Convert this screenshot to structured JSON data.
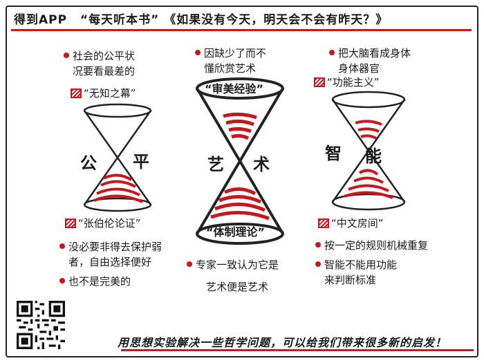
{
  "header": {
    "brand": "得到APP",
    "series": "“每天听本书”",
    "book": "《如果没有今天，明天会不会有昨天？》"
  },
  "panels": {
    "fairness": {
      "title_left": "公",
      "title_right": "平",
      "top_note_1": "社会的公平状",
      "top_note_2": "况要看最差的",
      "top_concept": "“无知之幕”",
      "bottom_concept": "“张伯伦论证”",
      "note_a_1": "没必要非得去保护弱",
      "note_a_2": "者，自由选择便好",
      "note_b": "也不是完美的"
    },
    "art": {
      "title_left": "艺",
      "title_right": "术",
      "top_note_1": "因缺少了而不",
      "top_note_2": "懂欣赏艺术",
      "top_concept": "“审美经验”",
      "bottom_concept": "“体制理论”",
      "note_a": "专家一致认为它是",
      "note_b": "艺术便是艺术"
    },
    "intelligence": {
      "title_left": "智",
      "title_right": "能",
      "top_note_1": "把大脑看成身体",
      "top_note_2": "身体器官",
      "top_concept": "“功能主义”",
      "bottom_concept": "“中文房间”",
      "note_a": "按一定的规则机械重复",
      "note_b_1": "智能不能用功能",
      "note_b_2": "来判断标准"
    }
  },
  "footer": {
    "slogan": "用思想实验解决一些哲学问题，可以给我们带来很多新的启发！"
  },
  "colors": {
    "accent": "#c8161d",
    "ink": "#1a1a1a"
  }
}
